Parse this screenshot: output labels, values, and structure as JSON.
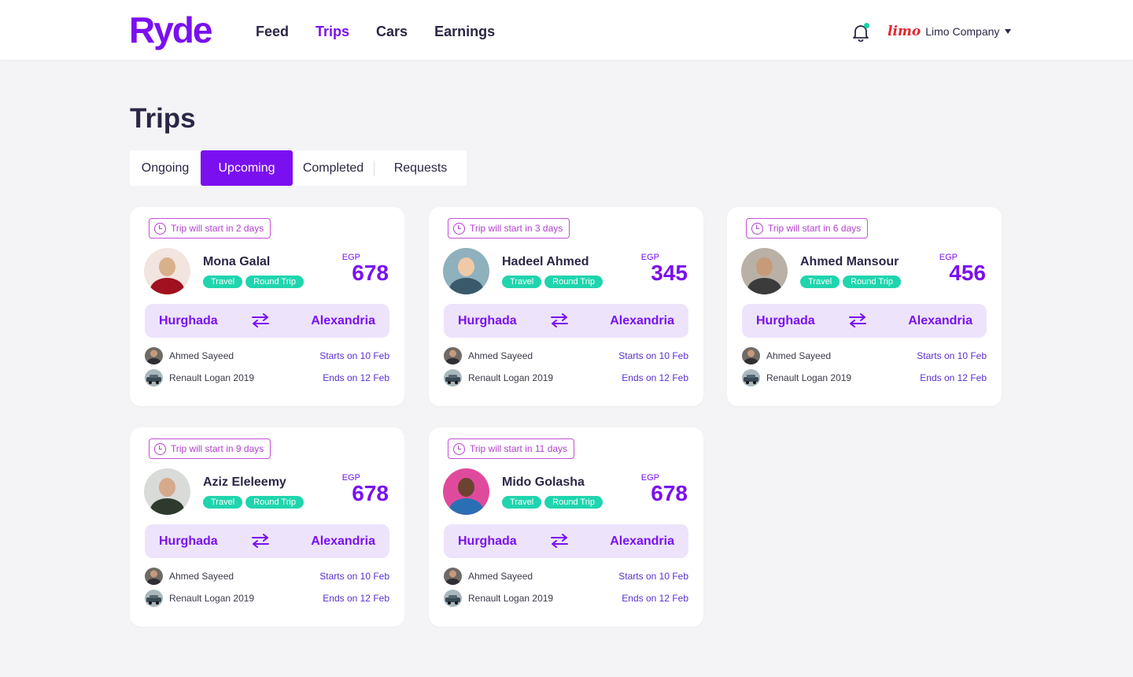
{
  "header": {
    "logo": "Ryde",
    "nav": [
      "Feed",
      "Trips",
      "Cars",
      "Earnings"
    ],
    "active_nav": "Trips",
    "company_logo": "limo",
    "company_name": "Limo Company"
  },
  "page_title": "Trips",
  "tabs": [
    "Ongoing",
    "Upcoming",
    "Completed",
    "Requests"
  ],
  "active_tab": "Upcoming",
  "trips": [
    {
      "countdown": "Trip will start in 2 days",
      "name": "Mona Galal",
      "tags": [
        "Travel",
        "Round Trip"
      ],
      "currency": "EGP",
      "price": "678",
      "from": "Hurghada",
      "to": "Alexandria",
      "driver": "Ahmed Sayeed",
      "car": "Renault Logan 2019",
      "start": "Starts on 10 Feb",
      "end": "Ends on 12 Feb",
      "avatar_colors": [
        "#d9b08c",
        "#a0101e",
        "#f2e4de"
      ]
    },
    {
      "countdown": "Trip will start in 3 days",
      "name": "Hadeel Ahmed",
      "tags": [
        "Travel",
        "Round Trip"
      ],
      "currency": "EGP",
      "price": "345",
      "from": "Hurghada",
      "to": "Alexandria",
      "driver": "Ahmed Sayeed",
      "car": "Renault Logan 2019",
      "start": "Starts on 10 Feb",
      "end": "Ends on 12 Feb",
      "avatar_colors": [
        "#f0c9a8",
        "#3a5a6c",
        "#8fb0bd"
      ]
    },
    {
      "countdown": "Trip will start in 6 days",
      "name": "Ahmed Mansour",
      "tags": [
        "Travel",
        "Round Trip"
      ],
      "currency": "EGP",
      "price": "456",
      "from": "Hurghada",
      "to": "Alexandria",
      "driver": "Ahmed Sayeed",
      "car": "Renault Logan 2019",
      "start": "Starts on 10 Feb",
      "end": "Ends on 12 Feb",
      "avatar_colors": [
        "#c79a7a",
        "#3b3b3b",
        "#b9b1a6"
      ]
    },
    {
      "countdown": "Trip will start in 9 days",
      "name": "Aziz Eleleemy",
      "tags": [
        "Travel",
        "Round Trip"
      ],
      "currency": "EGP",
      "price": "678",
      "from": "Hurghada",
      "to": "Alexandria",
      "driver": "Ahmed Sayeed",
      "car": "Renault Logan 2019",
      "start": "Starts on 10 Feb",
      "end": "Ends on 12 Feb",
      "avatar_colors": [
        "#d6a98b",
        "#2f3a2e",
        "#d9dbd9"
      ]
    },
    {
      "countdown": "Trip will start in 11 days",
      "name": "Mido Golasha",
      "tags": [
        "Travel",
        "Round Trip"
      ],
      "currency": "EGP",
      "price": "678",
      "from": "Hurghada",
      "to": "Alexandria",
      "driver": "Ahmed Sayeed",
      "car": "Renault Logan 2019",
      "start": "Starts on 10 Feb",
      "end": "Ends on 12 Feb",
      "avatar_colors": [
        "#6b4330",
        "#2a6fb4",
        "#e04a9c"
      ]
    }
  ],
  "colors": {
    "accent": "#7a10f0",
    "tag": "#1fd5ad",
    "route_bg": "#ede4fb",
    "chip": "#b33fd0"
  },
  "icons": [
    "bell-icon",
    "clock-icon",
    "swap-arrows-icon",
    "chevron-down-icon"
  ]
}
